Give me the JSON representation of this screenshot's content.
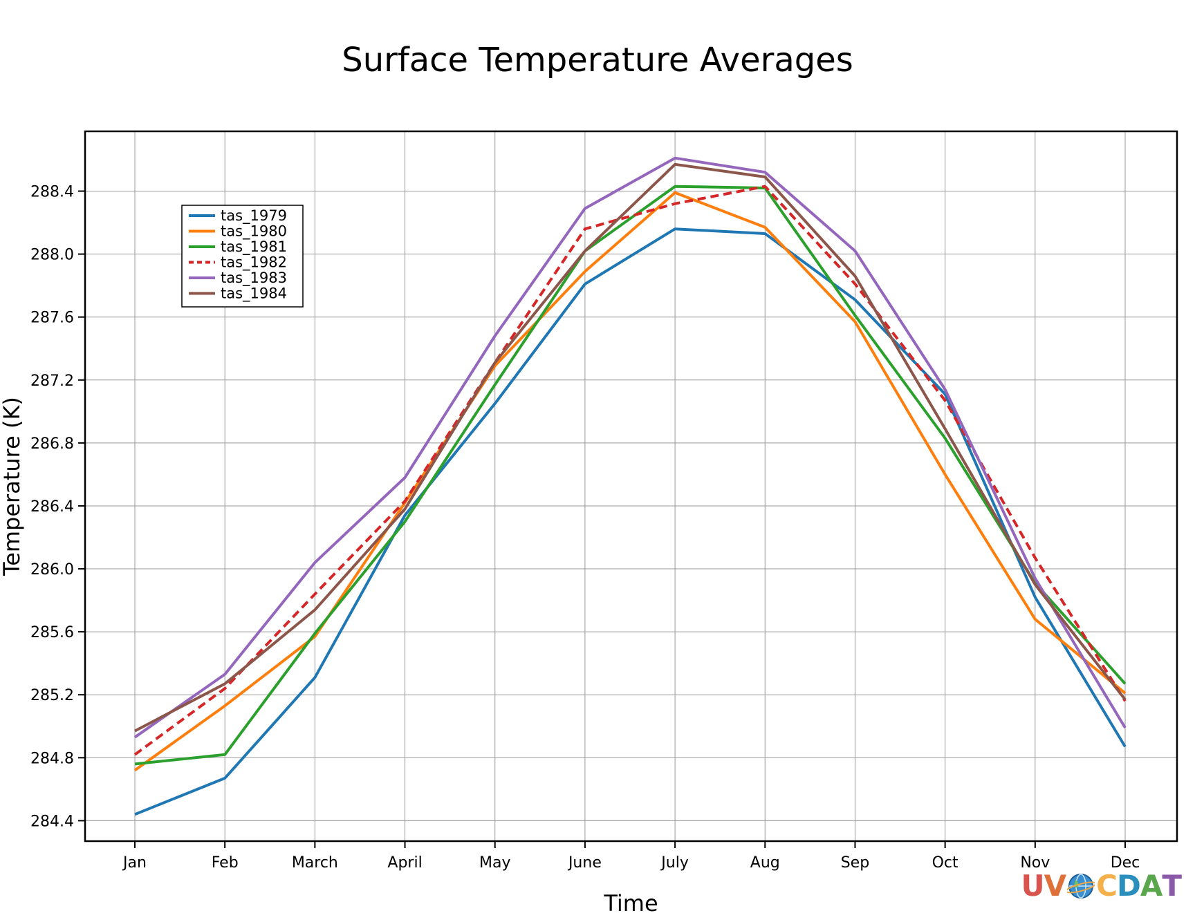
{
  "chart_data": {
    "type": "line",
    "title": "Surface Temperature Averages",
    "xlabel": "Time",
    "ylabel": "Temperature (K)",
    "categories": [
      "Jan",
      "Feb",
      "March",
      "April",
      "May",
      "June",
      "July",
      "Aug",
      "Sep",
      "Oct",
      "Nov",
      "Dec"
    ],
    "ylim": [
      284.27,
      288.78
    ],
    "yticks": [
      "284.4",
      "284.8",
      "285.2",
      "285.6",
      "286.0",
      "286.4",
      "286.8",
      "287.2",
      "287.6",
      "288.0",
      "288.4"
    ],
    "grid": true,
    "legend_position": "top-left",
    "series": [
      {
        "name": "tas_1979",
        "color": "#1f77b4",
        "style": "solid",
        "values": [
          284.44,
          284.67,
          285.31,
          286.34,
          287.05,
          287.81,
          288.16,
          288.13,
          287.71,
          287.11,
          285.82,
          284.87
        ]
      },
      {
        "name": "tas_1980",
        "color": "#ff7f0e",
        "style": "solid",
        "values": [
          284.72,
          285.13,
          285.57,
          286.42,
          287.29,
          287.89,
          288.39,
          288.17,
          287.57,
          286.6,
          285.68,
          285.21
        ]
      },
      {
        "name": "tas_1981",
        "color": "#2ca02c",
        "style": "solid",
        "values": [
          284.76,
          284.82,
          285.59,
          286.3,
          287.17,
          288.02,
          288.43,
          288.42,
          287.61,
          286.83,
          285.91,
          285.27
        ]
      },
      {
        "name": "tas_1982",
        "color": "#d62728",
        "style": "dashed",
        "values": [
          284.82,
          285.24,
          285.84,
          286.43,
          287.31,
          288.16,
          288.32,
          288.43,
          287.81,
          287.07,
          286.07,
          285.16
        ]
      },
      {
        "name": "tas_1983",
        "color": "#9467bd",
        "style": "solid",
        "values": [
          284.93,
          285.33,
          286.04,
          286.58,
          287.48,
          288.29,
          288.61,
          288.52,
          288.02,
          287.14,
          285.94,
          284.99
        ]
      },
      {
        "name": "tas_1984",
        "color": "#8c564b",
        "style": "solid",
        "values": [
          284.97,
          285.27,
          285.74,
          286.38,
          287.31,
          288.02,
          288.57,
          288.49,
          287.86,
          286.89,
          285.9,
          285.17
        ]
      }
    ]
  },
  "logo": {
    "letters": [
      {
        "text": "U",
        "color": "#d9534f"
      },
      {
        "text": "V",
        "color": "#e0703a"
      },
      {
        "text": "C",
        "color": "#f4b04a"
      },
      {
        "text": "D",
        "color": "#2a8fbd"
      },
      {
        "text": "A",
        "color": "#5aa64d"
      },
      {
        "text": "T",
        "color": "#8a5aa8"
      }
    ],
    "globe_icon": "globe-icon"
  }
}
